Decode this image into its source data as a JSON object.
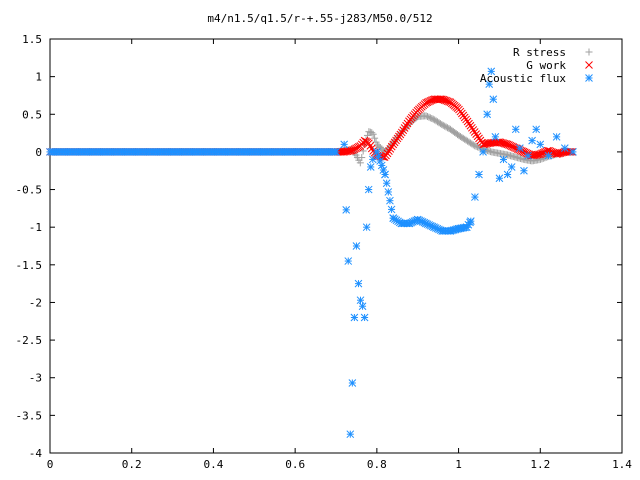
{
  "chart_data": {
    "type": "scatter",
    "title": "m4/n1.5/q1.5/r-+.55-j283/M50.0/512",
    "xlabel": "",
    "ylabel": "",
    "xlim": [
      0,
      1.4
    ],
    "ylim": [
      -4,
      1.5
    ],
    "grid": false,
    "legend_position": "top-right",
    "x_ticks": [
      0,
      0.2,
      0.4,
      0.6,
      0.8,
      1,
      1.2,
      1.4
    ],
    "x_tick_labels": [
      "0",
      "0.2",
      "0.4",
      "0.6",
      "0.8",
      "1",
      "1.2",
      "1.4"
    ],
    "y_ticks": [
      1.5,
      1,
      0.5,
      0,
      -0.5,
      -1,
      -1.5,
      -2,
      -2.5,
      -3,
      -3.5,
      -4
    ],
    "y_tick_labels": [
      "1.5",
      "1",
      "0.5",
      "0",
      "-0.5",
      "-1",
      "-1.5",
      "-2",
      "-2.5",
      "-3",
      "-3.5",
      "-4"
    ],
    "series": [
      {
        "name": "R stress",
        "color": "#a0a0a0",
        "marker": "plus",
        "x": [
          0,
          0.1,
          0.2,
          0.3,
          0.4,
          0.5,
          0.6,
          0.7,
          0.72,
          0.74,
          0.75,
          0.76,
          0.77,
          0.78,
          0.79,
          0.8,
          0.82,
          0.84,
          0.86,
          0.88,
          0.9,
          0.92,
          0.94,
          0.96,
          0.98,
          1.0,
          1.02,
          1.04,
          1.06,
          1.08,
          1.1,
          1.12,
          1.14,
          1.16,
          1.18,
          1.2,
          1.22,
          1.24,
          1.26,
          1.28
        ],
        "y": [
          0,
          0,
          0,
          0,
          0,
          0,
          0,
          0,
          0.02,
          0.03,
          -0.05,
          -0.15,
          0.1,
          0.27,
          0.25,
          0.1,
          0.0,
          0.12,
          0.26,
          0.38,
          0.47,
          0.48,
          0.43,
          0.36,
          0.3,
          0.22,
          0.15,
          0.08,
          0.04,
          0.0,
          -0.02,
          -0.04,
          -0.07,
          -0.1,
          -0.12,
          -0.1,
          -0.06,
          -0.03,
          0.0,
          0.0
        ]
      },
      {
        "name": "G work",
        "color": "#ff0000",
        "marker": "cross",
        "x": [
          0,
          0.1,
          0.2,
          0.3,
          0.4,
          0.5,
          0.6,
          0.7,
          0.72,
          0.74,
          0.75,
          0.76,
          0.77,
          0.78,
          0.79,
          0.8,
          0.82,
          0.84,
          0.86,
          0.88,
          0.9,
          0.92,
          0.94,
          0.96,
          0.98,
          1.0,
          1.02,
          1.04,
          1.06,
          1.08,
          1.1,
          1.12,
          1.14,
          1.16,
          1.18,
          1.2,
          1.22,
          1.24,
          1.26,
          1.28
        ],
        "y": [
          0,
          0,
          0,
          0,
          0,
          0,
          0,
          0,
          0.0,
          0.02,
          0.05,
          0.08,
          0.15,
          0.12,
          0.02,
          -0.05,
          -0.07,
          0.1,
          0.25,
          0.42,
          0.55,
          0.65,
          0.7,
          0.7,
          0.66,
          0.57,
          0.42,
          0.26,
          0.1,
          0.12,
          0.13,
          0.1,
          0.05,
          0.0,
          -0.05,
          -0.03,
          0.02,
          -0.03,
          0.0,
          0.0
        ]
      },
      {
        "name": "Acoustic flux",
        "color": "#1e90ff",
        "marker": "star",
        "x": [
          0,
          0.1,
          0.2,
          0.3,
          0.4,
          0.5,
          0.6,
          0.7,
          0.72,
          0.725,
          0.73,
          0.735,
          0.74,
          0.745,
          0.75,
          0.755,
          0.76,
          0.765,
          0.77,
          0.775,
          0.78,
          0.785,
          0.79,
          0.8,
          0.82,
          0.84,
          0.86,
          0.88,
          0.9,
          0.92,
          0.94,
          0.96,
          0.98,
          1.0,
          1.02,
          1.03,
          1.04,
          1.05,
          1.06,
          1.07,
          1.075,
          1.08,
          1.085,
          1.09,
          1.1,
          1.11,
          1.12,
          1.13,
          1.14,
          1.15,
          1.16,
          1.17,
          1.18,
          1.19,
          1.2,
          1.22,
          1.24,
          1.26,
          1.28
        ],
        "y": [
          0,
          0,
          0,
          0,
          0,
          0,
          0,
          0,
          0.1,
          -0.77,
          -1.45,
          -3.75,
          -3.07,
          -2.2,
          -1.25,
          -1.75,
          -1.97,
          -2.05,
          -2.2,
          -1.0,
          -0.5,
          -0.2,
          -0.1,
          0.0,
          -0.3,
          -0.88,
          -0.95,
          -0.95,
          -0.9,
          -0.95,
          -1.0,
          -1.05,
          -1.05,
          -1.02,
          -1.0,
          -0.92,
          -0.6,
          -0.3,
          0.0,
          0.5,
          0.9,
          1.07,
          0.7,
          0.2,
          -0.35,
          -0.1,
          -0.3,
          -0.2,
          0.3,
          0.05,
          -0.25,
          -0.05,
          0.15,
          0.3,
          0.1,
          -0.05,
          0.2,
          0.05,
          0.0
        ]
      }
    ]
  }
}
